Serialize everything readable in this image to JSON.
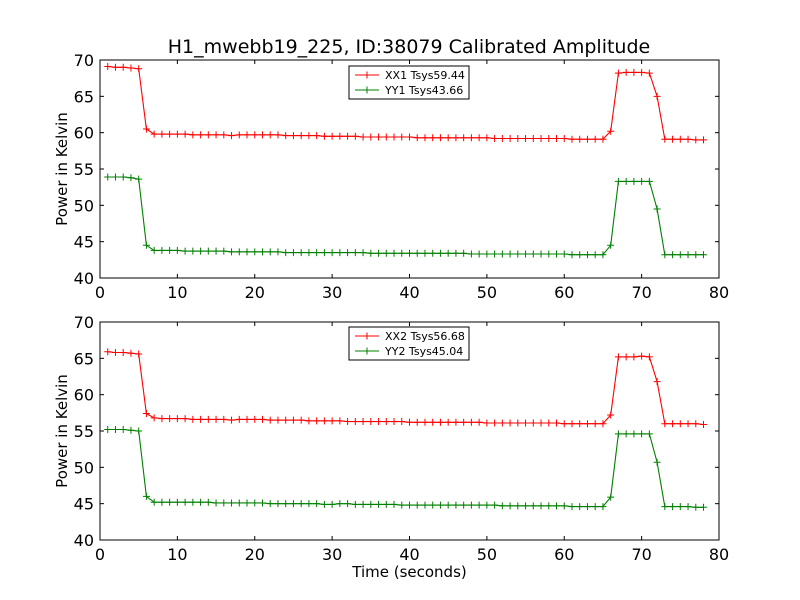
{
  "figure": {
    "title": "H1_mwebb19_225, ID:38079 Calibrated Amplitude",
    "colors": {
      "xx": "#ff0000",
      "yy": "#008000"
    }
  },
  "chart_data": [
    {
      "type": "line",
      "title": "H1_mwebb19_225, ID:38079 Calibrated Amplitude",
      "xlabel": "",
      "ylabel": "Power in Kelvin",
      "xlim": [
        0,
        80
      ],
      "ylim": [
        40,
        70
      ],
      "xticks": [
        0,
        10,
        20,
        30,
        40,
        50,
        60,
        70,
        80
      ],
      "yticks": [
        40,
        45,
        50,
        55,
        60,
        65,
        70
      ],
      "legend_position": "upper-center",
      "x": [
        1,
        2,
        3,
        4,
        5,
        6,
        7,
        8,
        9,
        10,
        11,
        12,
        13,
        14,
        15,
        16,
        17,
        18,
        19,
        20,
        21,
        22,
        23,
        24,
        25,
        26,
        27,
        28,
        29,
        30,
        31,
        32,
        33,
        34,
        35,
        36,
        37,
        38,
        39,
        40,
        41,
        42,
        43,
        44,
        45,
        46,
        47,
        48,
        49,
        50,
        51,
        52,
        53,
        54,
        55,
        56,
        57,
        58,
        59,
        60,
        61,
        62,
        63,
        64,
        65,
        66,
        67,
        68,
        69,
        70,
        71,
        72,
        73,
        74,
        75,
        76,
        77,
        78
      ],
      "series": [
        {
          "name": "XX1 Tsys59.44",
          "color": "#ff0000",
          "values": [
            69.1,
            69.0,
            69.0,
            68.9,
            68.8,
            60.5,
            59.8,
            59.8,
            59.8,
            59.8,
            59.8,
            59.7,
            59.7,
            59.7,
            59.7,
            59.7,
            59.6,
            59.7,
            59.7,
            59.7,
            59.7,
            59.7,
            59.7,
            59.6,
            59.6,
            59.6,
            59.6,
            59.6,
            59.5,
            59.5,
            59.5,
            59.5,
            59.5,
            59.4,
            59.4,
            59.4,
            59.4,
            59.4,
            59.4,
            59.4,
            59.3,
            59.3,
            59.3,
            59.3,
            59.3,
            59.3,
            59.3,
            59.3,
            59.3,
            59.3,
            59.2,
            59.2,
            59.2,
            59.2,
            59.2,
            59.2,
            59.2,
            59.2,
            59.2,
            59.2,
            59.1,
            59.1,
            59.1,
            59.1,
            59.1,
            60.2,
            68.2,
            68.3,
            68.3,
            68.3,
            68.2,
            65.0,
            59.1,
            59.1,
            59.1,
            59.1,
            59.0,
            59.0
          ]
        },
        {
          "name": "YY1 Tsys43.66",
          "color": "#008000",
          "values": [
            53.9,
            53.9,
            53.9,
            53.8,
            53.6,
            44.5,
            43.8,
            43.8,
            43.8,
            43.8,
            43.7,
            43.7,
            43.7,
            43.7,
            43.7,
            43.7,
            43.6,
            43.6,
            43.6,
            43.6,
            43.6,
            43.6,
            43.6,
            43.5,
            43.5,
            43.5,
            43.5,
            43.5,
            43.5,
            43.5,
            43.5,
            43.5,
            43.5,
            43.5,
            43.4,
            43.4,
            43.4,
            43.4,
            43.4,
            43.4,
            43.4,
            43.4,
            43.4,
            43.4,
            43.4,
            43.4,
            43.4,
            43.3,
            43.3,
            43.3,
            43.3,
            43.3,
            43.3,
            43.3,
            43.3,
            43.3,
            43.3,
            43.3,
            43.3,
            43.3,
            43.2,
            43.2,
            43.2,
            43.2,
            43.2,
            44.5,
            53.3,
            53.3,
            53.3,
            53.3,
            53.3,
            49.5,
            43.2,
            43.2,
            43.2,
            43.2,
            43.2,
            43.2
          ]
        }
      ]
    },
    {
      "type": "line",
      "title": "",
      "xlabel": "Time (seconds)",
      "ylabel": "Power in Kelvin",
      "xlim": [
        0,
        80
      ],
      "ylim": [
        40,
        70
      ],
      "xticks": [
        0,
        10,
        20,
        30,
        40,
        50,
        60,
        70,
        80
      ],
      "yticks": [
        40,
        45,
        50,
        55,
        60,
        65,
        70
      ],
      "legend_position": "upper-center",
      "x": [
        1,
        2,
        3,
        4,
        5,
        6,
        7,
        8,
        9,
        10,
        11,
        12,
        13,
        14,
        15,
        16,
        17,
        18,
        19,
        20,
        21,
        22,
        23,
        24,
        25,
        26,
        27,
        28,
        29,
        30,
        31,
        32,
        33,
        34,
        35,
        36,
        37,
        38,
        39,
        40,
        41,
        42,
        43,
        44,
        45,
        46,
        47,
        48,
        49,
        50,
        51,
        52,
        53,
        54,
        55,
        56,
        57,
        58,
        59,
        60,
        61,
        62,
        63,
        64,
        65,
        66,
        67,
        68,
        69,
        70,
        71,
        72,
        73,
        74,
        75,
        76,
        77,
        78
      ],
      "series": [
        {
          "name": "XX2 Tsys56.68",
          "color": "#ff0000",
          "values": [
            65.9,
            65.8,
            65.8,
            65.7,
            65.6,
            57.4,
            56.8,
            56.7,
            56.7,
            56.7,
            56.7,
            56.6,
            56.6,
            56.6,
            56.6,
            56.6,
            56.5,
            56.6,
            56.6,
            56.6,
            56.6,
            56.5,
            56.5,
            56.5,
            56.5,
            56.5,
            56.4,
            56.4,
            56.4,
            56.4,
            56.4,
            56.3,
            56.3,
            56.3,
            56.3,
            56.3,
            56.3,
            56.3,
            56.3,
            56.2,
            56.2,
            56.2,
            56.2,
            56.2,
            56.2,
            56.2,
            56.2,
            56.2,
            56.2,
            56.1,
            56.1,
            56.1,
            56.1,
            56.1,
            56.1,
            56.1,
            56.1,
            56.1,
            56.1,
            56.0,
            56.0,
            56.0,
            56.0,
            56.0,
            56.0,
            57.2,
            65.2,
            65.2,
            65.2,
            65.3,
            65.2,
            61.8,
            56.0,
            56.0,
            56.0,
            56.0,
            56.0,
            55.9
          ]
        },
        {
          "name": "YY2 Tsys45.04",
          "color": "#008000",
          "values": [
            55.2,
            55.2,
            55.2,
            55.1,
            55.0,
            46.0,
            45.2,
            45.2,
            45.2,
            45.2,
            45.2,
            45.2,
            45.2,
            45.2,
            45.1,
            45.1,
            45.1,
            45.1,
            45.1,
            45.1,
            45.1,
            45.0,
            45.0,
            45.0,
            45.0,
            45.0,
            45.0,
            45.0,
            44.9,
            44.9,
            45.0,
            45.0,
            44.9,
            44.9,
            44.9,
            44.9,
            44.9,
            44.9,
            44.8,
            44.8,
            44.8,
            44.8,
            44.8,
            44.8,
            44.8,
            44.8,
            44.8,
            44.8,
            44.8,
            44.8,
            44.8,
            44.7,
            44.7,
            44.7,
            44.7,
            44.7,
            44.7,
            44.7,
            44.7,
            44.7,
            44.6,
            44.6,
            44.6,
            44.6,
            44.6,
            45.9,
            54.6,
            54.6,
            54.6,
            54.6,
            54.6,
            50.7,
            44.6,
            44.6,
            44.6,
            44.6,
            44.5,
            44.5
          ]
        }
      ]
    }
  ]
}
